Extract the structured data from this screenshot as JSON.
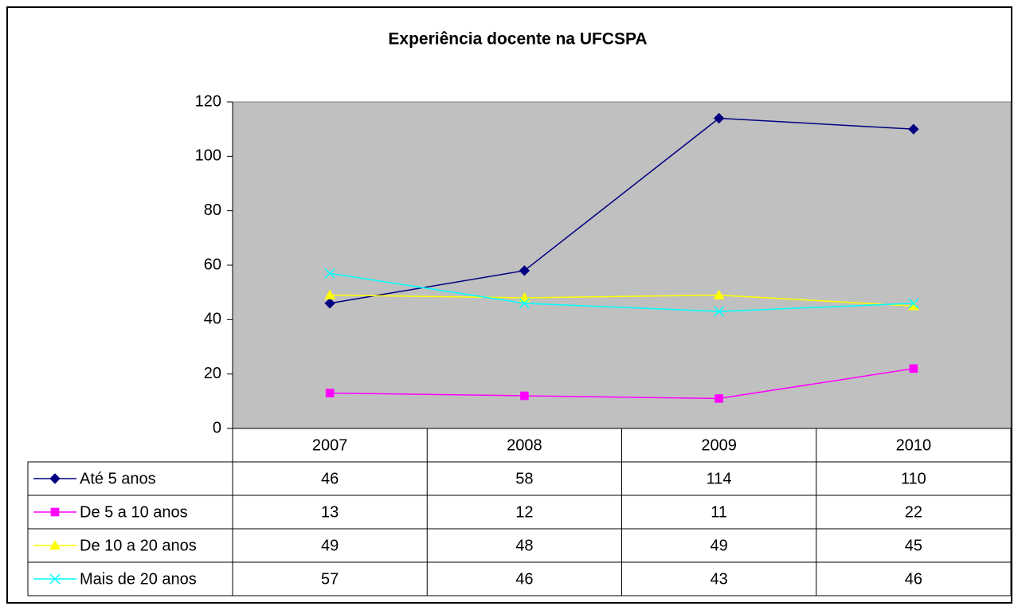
{
  "chart_data": {
    "type": "line",
    "title": "Experiência docente na UFCSPA",
    "categories": [
      "2007",
      "2008",
      "2009",
      "2010"
    ],
    "series": [
      {
        "name": "Até 5 anos",
        "color": "#000080",
        "marker": "diamond",
        "values": [
          46,
          58,
          114,
          110
        ]
      },
      {
        "name": "De 5 a 10 anos",
        "color": "#ff00ff",
        "marker": "square",
        "values": [
          13,
          12,
          11,
          22
        ]
      },
      {
        "name": "De 10 a 20 anos",
        "color": "#ffff00",
        "marker": "triangle",
        "values": [
          49,
          48,
          49,
          45
        ]
      },
      {
        "name": "Mais de 20 anos",
        "color": "#00ffff",
        "marker": "x",
        "values": [
          57,
          46,
          43,
          46
        ]
      }
    ],
    "ylim": [
      0,
      120
    ],
    "yticks": [
      0,
      20,
      40,
      60,
      80,
      100,
      120
    ],
    "plot_background": "#c0c0c0"
  }
}
